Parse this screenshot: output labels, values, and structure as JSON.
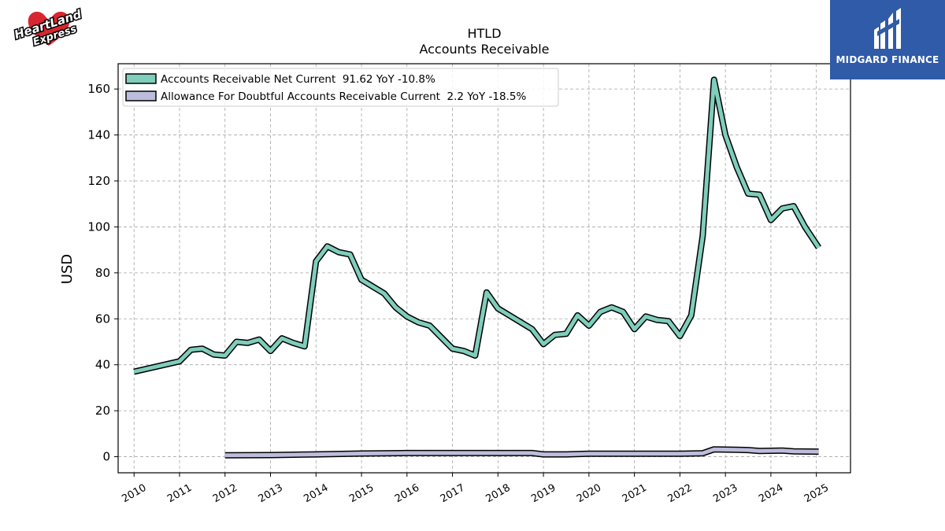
{
  "branding": {
    "company_logo_text": "HeartLand Express",
    "publisher_logo_text": "MIDGARD FINANCE"
  },
  "chart_data": {
    "type": "line",
    "title": "HTLD",
    "subtitle": "Accounts Receivable",
    "xlabel": "",
    "ylabel": "USD",
    "xlim": [
      2009.65,
      2025.75
    ],
    "ylim": [
      -7,
      171
    ],
    "x_ticks": [
      2010,
      2011,
      2012,
      2013,
      2014,
      2015,
      2016,
      2017,
      2018,
      2019,
      2020,
      2021,
      2022,
      2023,
      2024,
      2025
    ],
    "y_ticks": [
      0,
      20,
      40,
      60,
      80,
      100,
      120,
      140,
      160
    ],
    "grid": true,
    "legend_position": "top-left",
    "series": [
      {
        "name": "Accounts Receivable Net Current  91.62 YoY -10.8%",
        "color": "#7fcdbb",
        "points": [
          [
            2010.0,
            37
          ],
          [
            2011.0,
            41.5
          ],
          [
            2011.25,
            46.5
          ],
          [
            2011.5,
            47
          ],
          [
            2011.75,
            44.5
          ],
          [
            2012.0,
            44
          ],
          [
            2012.25,
            50
          ],
          [
            2012.5,
            49.5
          ],
          [
            2012.75,
            51
          ],
          [
            2013.0,
            46
          ],
          [
            2013.25,
            51.5
          ],
          [
            2013.5,
            49.5
          ],
          [
            2013.75,
            48
          ],
          [
            2014.0,
            85
          ],
          [
            2014.25,
            91.5
          ],
          [
            2014.5,
            89
          ],
          [
            2014.75,
            88
          ],
          [
            2015.0,
            77
          ],
          [
            2015.5,
            71
          ],
          [
            2015.75,
            65
          ],
          [
            2016.0,
            61
          ],
          [
            2016.25,
            58.5
          ],
          [
            2016.5,
            57
          ],
          [
            2016.75,
            52
          ],
          [
            2017.0,
            47
          ],
          [
            2017.25,
            46
          ],
          [
            2017.5,
            44
          ],
          [
            2017.75,
            71.5
          ],
          [
            2018.0,
            64.5
          ],
          [
            2018.75,
            55.5
          ],
          [
            2019.0,
            49
          ],
          [
            2019.25,
            53
          ],
          [
            2019.5,
            53.5
          ],
          [
            2019.75,
            61.5
          ],
          [
            2020.0,
            57
          ],
          [
            2020.25,
            63
          ],
          [
            2020.5,
            65
          ],
          [
            2020.75,
            63
          ],
          [
            2021.0,
            55.5
          ],
          [
            2021.25,
            61
          ],
          [
            2021.5,
            59.5
          ],
          [
            2021.75,
            59
          ],
          [
            2022.0,
            52.5
          ],
          [
            2022.25,
            61.5
          ],
          [
            2022.5,
            96
          ],
          [
            2022.75,
            164
          ],
          [
            2023.0,
            140
          ],
          [
            2023.25,
            126
          ],
          [
            2023.5,
            114.5
          ],
          [
            2023.75,
            114
          ],
          [
            2024.0,
            103
          ],
          [
            2024.25,
            108
          ],
          [
            2024.5,
            109
          ],
          [
            2024.75,
            100
          ],
          [
            2025.05,
            91
          ]
        ]
      },
      {
        "name": "Allowance For Doubtful Accounts Receivable Current  2.2 YoY -18.5%",
        "color": "#bcbddc",
        "points": [
          [
            2012.0,
            0.6
          ],
          [
            2013.0,
            0.7
          ],
          [
            2014.0,
            1.0
          ],
          [
            2015.0,
            1.4
          ],
          [
            2016.0,
            1.6
          ],
          [
            2017.0,
            1.6
          ],
          [
            2018.0,
            1.6
          ],
          [
            2018.75,
            1.6
          ],
          [
            2019.0,
            1.0
          ],
          [
            2019.5,
            1.0
          ],
          [
            2020.0,
            1.3
          ],
          [
            2021.0,
            1.3
          ],
          [
            2022.0,
            1.3
          ],
          [
            2022.5,
            1.5
          ],
          [
            2022.75,
            3.2
          ],
          [
            2023.25,
            3.0
          ],
          [
            2023.5,
            2.9
          ],
          [
            2023.75,
            2.5
          ],
          [
            2024.0,
            2.6
          ],
          [
            2024.25,
            2.7
          ],
          [
            2024.5,
            2.3
          ],
          [
            2025.05,
            2.2
          ]
        ]
      }
    ]
  }
}
